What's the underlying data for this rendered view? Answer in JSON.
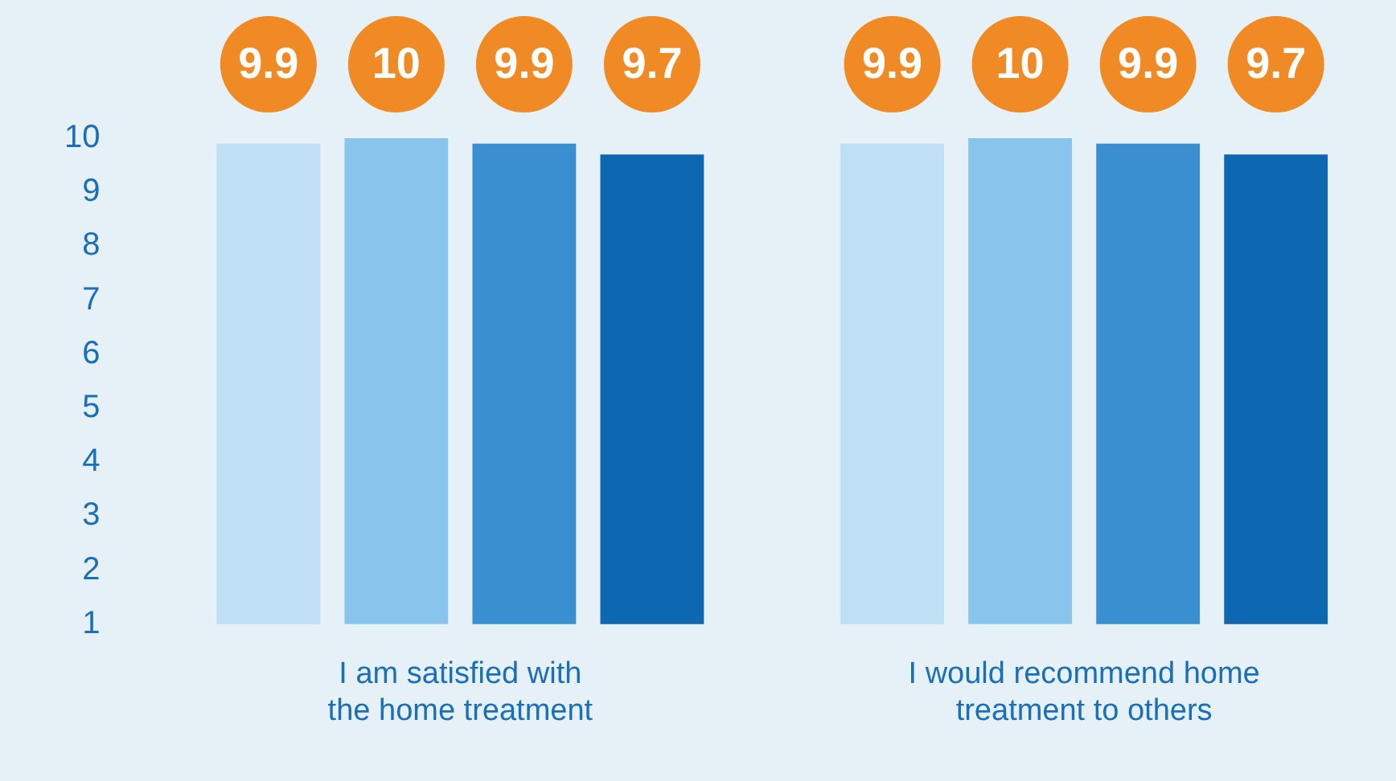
{
  "chart_data": {
    "type": "bar",
    "categories": [
      "I am satisfied with the home treatment",
      "I would recommend home treatment to others"
    ],
    "series": [
      {
        "color": "#bfdff5",
        "values": [
          9.9,
          9.9
        ]
      },
      {
        "color": "#89c4ec",
        "values": [
          10,
          10
        ]
      },
      {
        "color": "#3a8fd0",
        "values": [
          9.9,
          9.9
        ]
      },
      {
        "color": "#0e68b1",
        "values": [
          9.7,
          9.7
        ]
      }
    ],
    "ylim": [
      1,
      10
    ],
    "yticks": [
      1,
      2,
      3,
      4,
      5,
      6,
      7,
      8,
      9,
      10
    ],
    "grid": false,
    "legend": false,
    "data_labels": true
  }
}
